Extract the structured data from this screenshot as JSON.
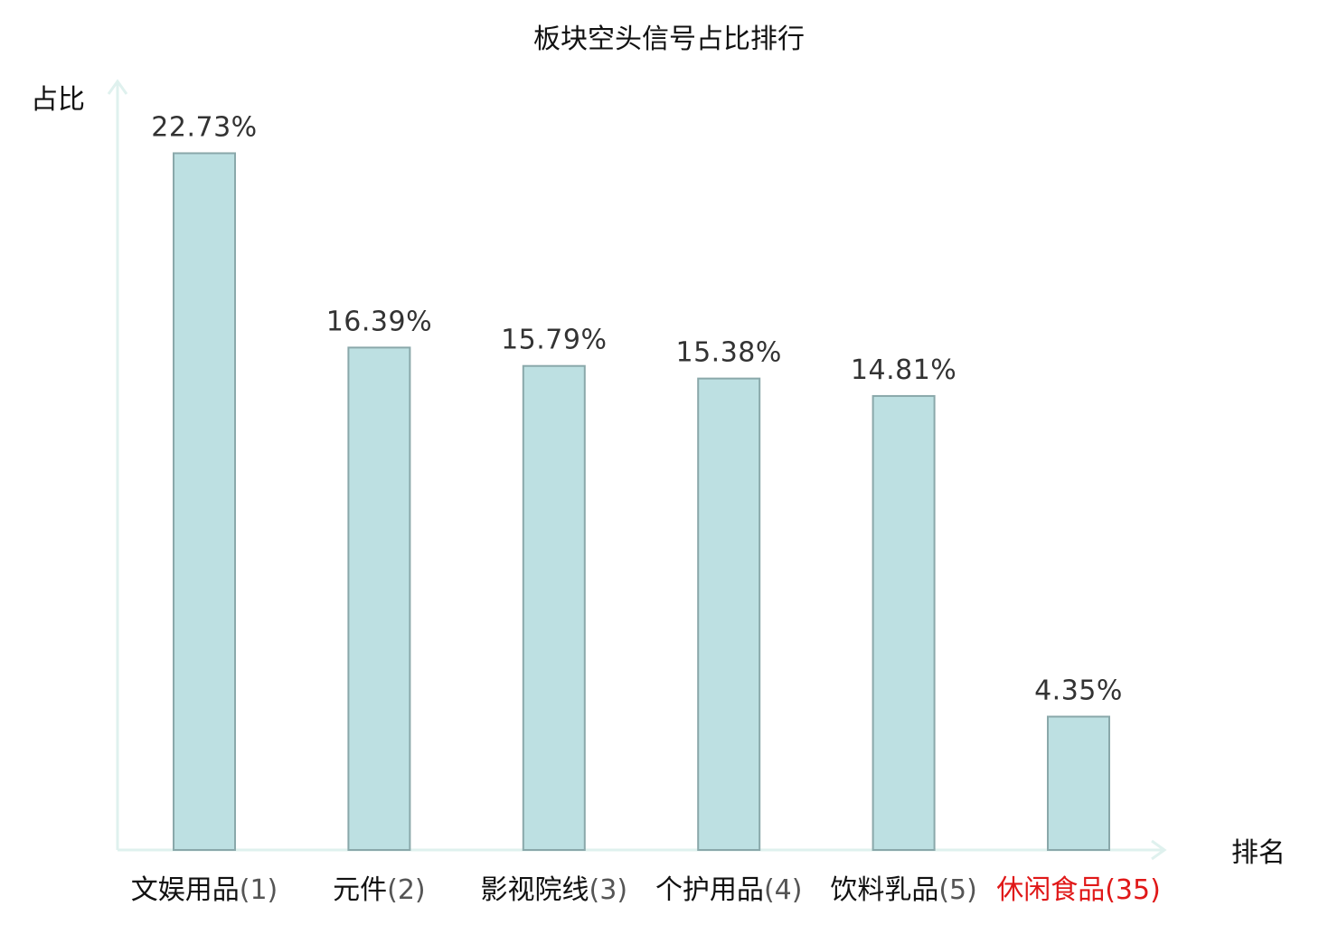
{
  "colors": {
    "bar_fill": "#bde0e2",
    "bar_stroke": "#8aa8aa",
    "axis": "#dff1ee",
    "highlight": "#e01818",
    "value_text": "#333333",
    "text": "#111111"
  },
  "chart_data": {
    "type": "bar",
    "title": "板块空头信号占比排行",
    "xlabel": "排名",
    "ylabel": "占比",
    "ylim": [
      0,
      25
    ],
    "grid": false,
    "legend": "none",
    "unit": "%",
    "categories": [
      {
        "name": "文娱用品",
        "rank": "(1)",
        "highlight": false
      },
      {
        "name": "元件",
        "rank": "(2)",
        "highlight": false
      },
      {
        "name": "影视院线",
        "rank": "(3)",
        "highlight": false
      },
      {
        "name": "个护用品",
        "rank": "(4)",
        "highlight": false
      },
      {
        "name": "饮料乳品",
        "rank": "(5)",
        "highlight": false
      },
      {
        "name": "休闲食品",
        "rank": "(35)",
        "highlight": true
      }
    ],
    "values": [
      22.73,
      16.39,
      15.79,
      15.38,
      14.81,
      4.35
    ],
    "value_labels": [
      "22.73%",
      "16.39%",
      "15.79%",
      "15.38%",
      "14.81%",
      "4.35%"
    ]
  }
}
